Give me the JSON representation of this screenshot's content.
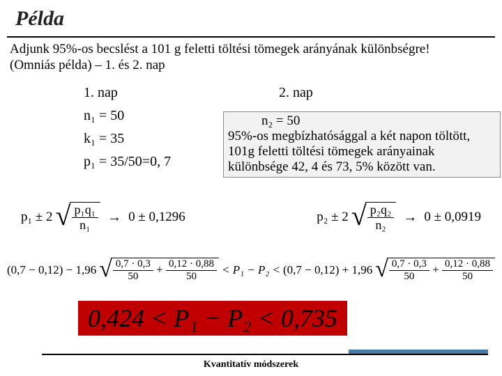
{
  "title": "Példa",
  "intro_line1": "Adjunk 95%-os becslést a 101 g feletti töltési tömegek arányának különbségre!",
  "intro_line2": "(Omniás példa) – 1. és 2. nap",
  "left": {
    "head": "1. nap",
    "n": "n₁ = 50",
    "k": "k₁ = 35",
    "p": "p₁ = 35/50=0, 7"
  },
  "right": {
    "head": "2. nap",
    "n": "n₂ = 50"
  },
  "note_text": "95%-os megbízhatósággal a két napon töltött, 101g feletti töltési tömegek arányainak különbsége 42, 4 és 73, 5% között van.",
  "formula_left": {
    "lhs_prefix": "p₁ ± 2",
    "num": "p₁q₁",
    "den": "n₁",
    "rhs": "0 ± 0,1296"
  },
  "formula_right": {
    "lhs_prefix": "p₂ ± 2",
    "num": "p₂q₂",
    "den": "n₂",
    "rhs": "0 ± 0,0919"
  },
  "long_formula": {
    "a": "(0,7 − 0,12) − 1,96",
    "sq_num1": "0,7 · 0,3",
    "sq_den1": "50",
    "sq_num2": "0,12 · 0,88",
    "sq_den2": "50",
    "middle": "< P₁ − P₂ <",
    "b": "(0,7 − 0,12) + 1,96"
  },
  "result": "0,424 < P₁ − P₂ < 0,735",
  "footer": "Kvantitatív módszerek",
  "colors": {
    "result_bg": "#c00000",
    "accent": "#4a7aa6"
  }
}
